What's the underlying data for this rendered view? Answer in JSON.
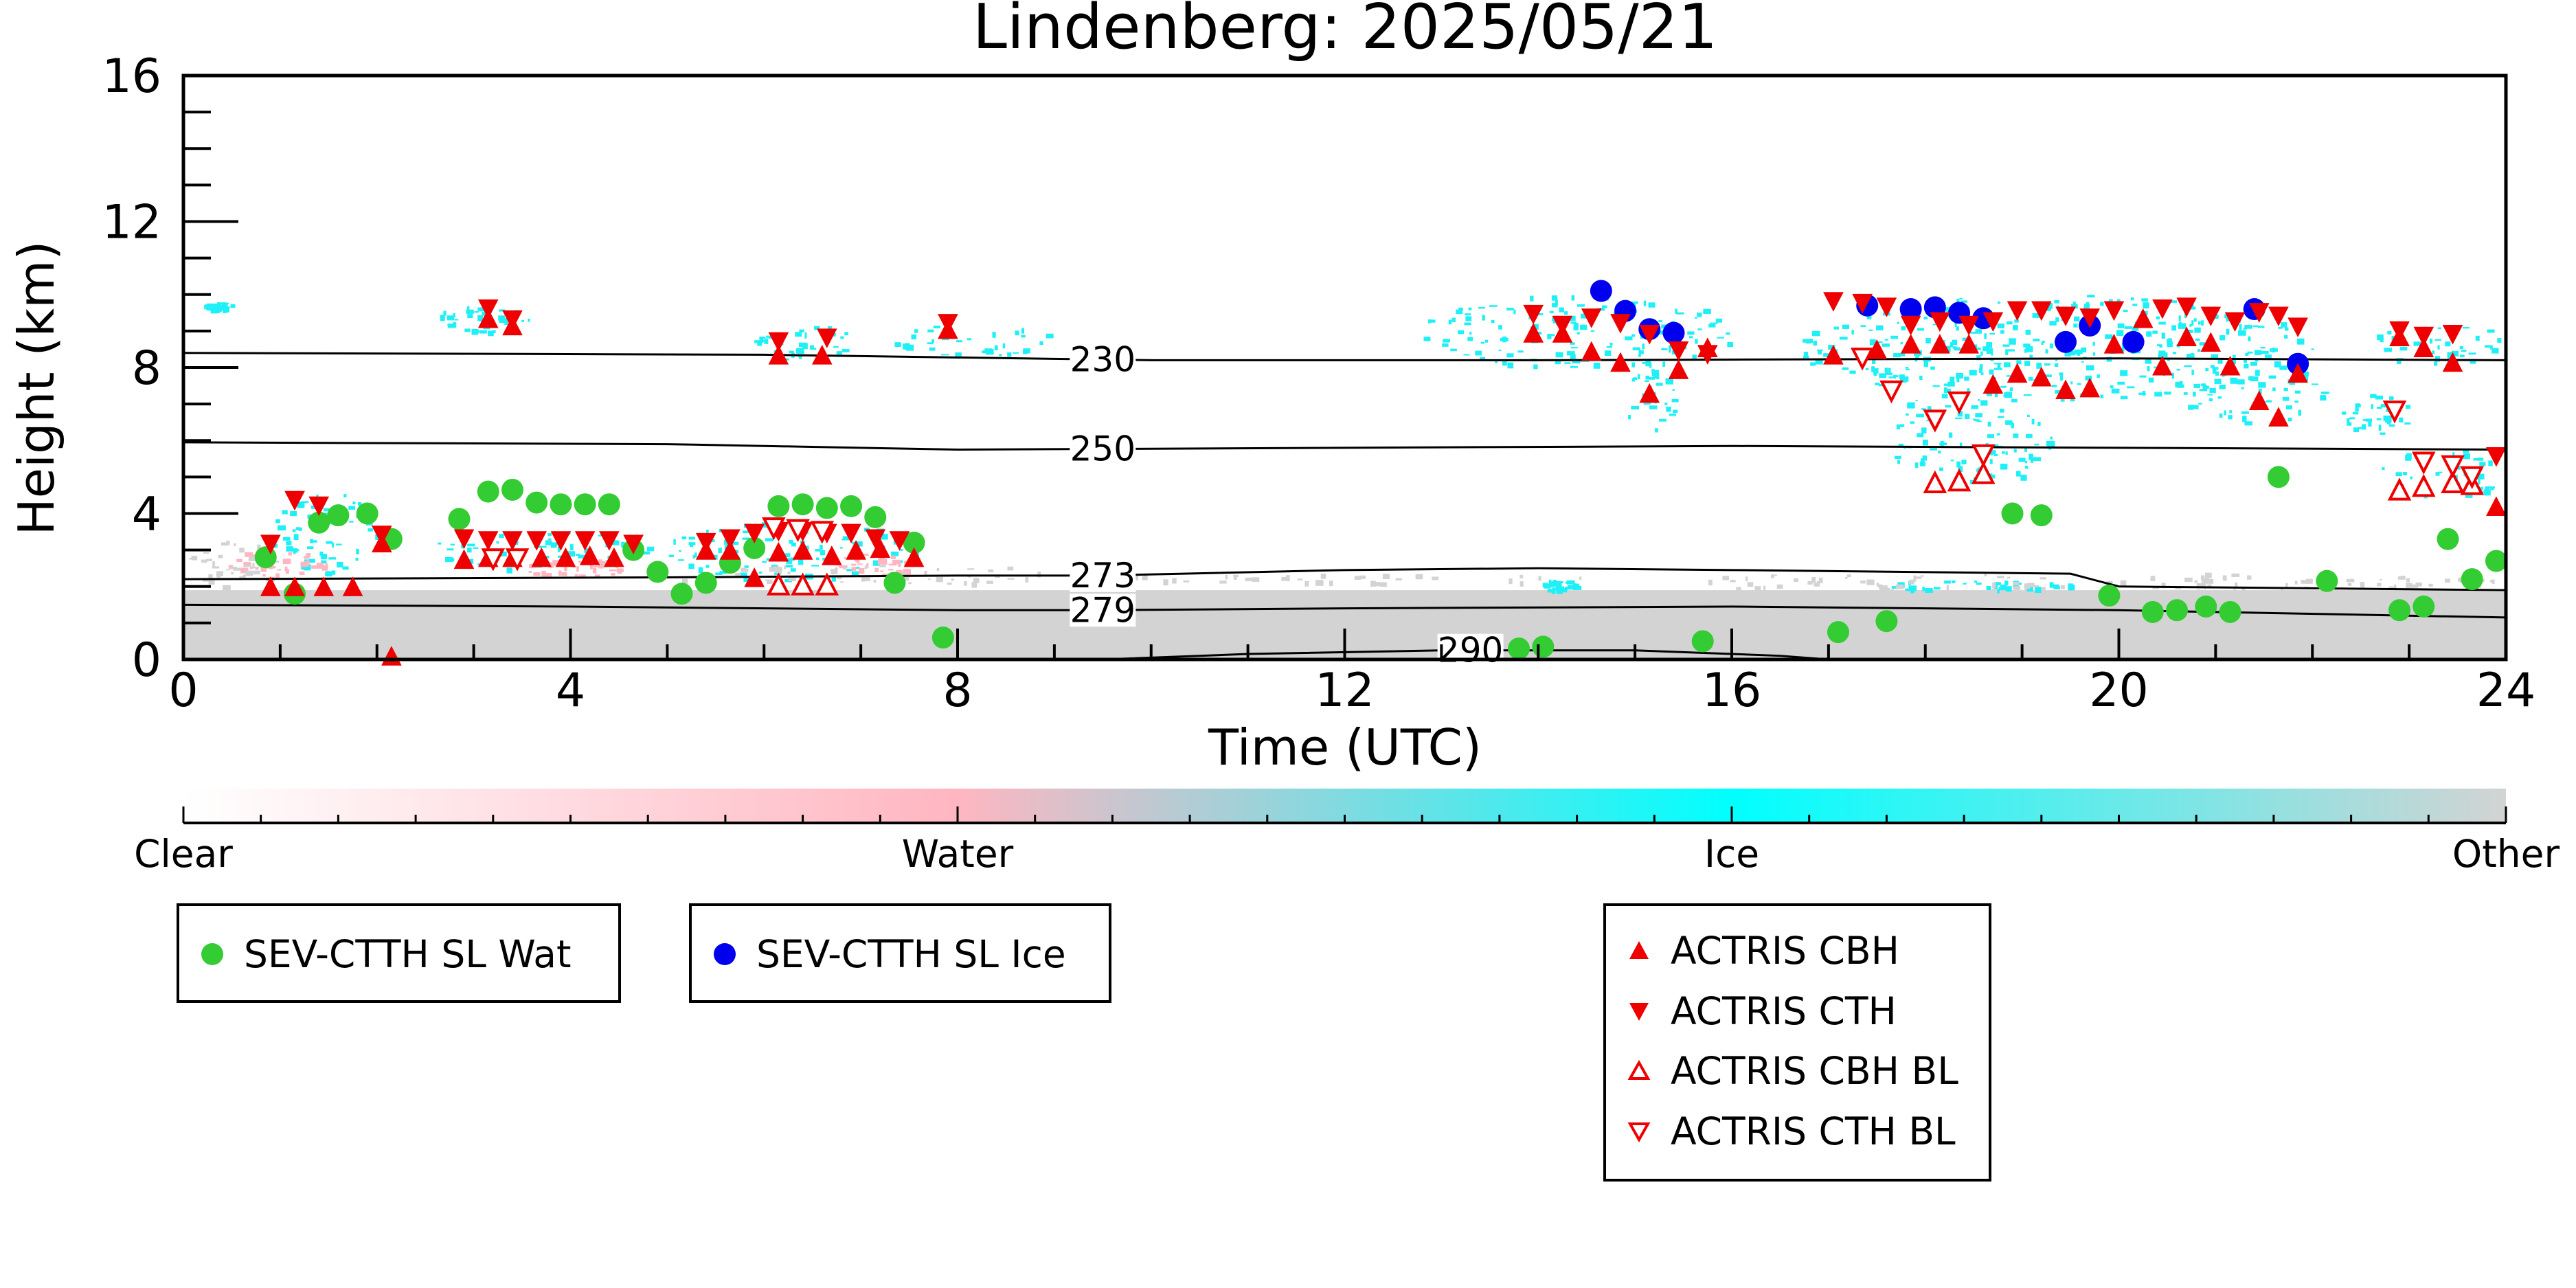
{
  "chart_data": {
    "type": "scatter",
    "title": "Lindenberg: 2025/05/21",
    "xlabel": "Time (UTC)",
    "ylabel": "Height (km)",
    "xlim": [
      0,
      24
    ],
    "ylim": [
      0,
      16
    ],
    "x_ticks": [
      0,
      4,
      8,
      12,
      16,
      20,
      24
    ],
    "y_ticks": [
      0,
      4,
      8,
      12,
      16
    ],
    "colorbar": {
      "labels": [
        "Clear",
        "Water",
        "Ice",
        "Other"
      ],
      "colors": [
        "#ffffff",
        "#ffb6c1",
        "#00ffff",
        "#d3d3d3"
      ]
    },
    "contours": [
      {
        "label": "230",
        "label_x": 9.5,
        "points": [
          [
            0,
            8.4
          ],
          [
            6,
            8.35
          ],
          [
            10,
            8.2
          ],
          [
            14,
            8.2
          ],
          [
            20,
            8.25
          ],
          [
            24,
            8.2
          ]
        ]
      },
      {
        "label": "250",
        "label_x": 9.5,
        "points": [
          [
            0,
            5.95
          ],
          [
            5,
            5.9
          ],
          [
            8,
            5.75
          ],
          [
            12,
            5.8
          ],
          [
            16,
            5.85
          ],
          [
            20,
            5.8
          ],
          [
            24,
            5.75
          ]
        ]
      },
      {
        "label": "273",
        "label_x": 9.5,
        "points": [
          [
            0,
            2.2
          ],
          [
            5,
            2.25
          ],
          [
            8,
            2.3
          ],
          [
            9.5,
            2.3
          ],
          [
            12,
            2.45
          ],
          [
            14,
            2.5
          ],
          [
            16,
            2.45
          ],
          [
            19.5,
            2.35
          ],
          [
            20,
            2.0
          ],
          [
            24,
            1.9
          ]
        ]
      },
      {
        "label": "279",
        "label_x": 9.5,
        "points": [
          [
            0,
            1.5
          ],
          [
            4,
            1.45
          ],
          [
            8,
            1.35
          ],
          [
            9.5,
            1.35
          ],
          [
            12,
            1.4
          ],
          [
            16,
            1.45
          ],
          [
            20,
            1.35
          ],
          [
            24,
            1.15
          ]
        ]
      },
      {
        "label": "290",
        "label_x": 13.3,
        "points": [
          [
            9.5,
            0.0
          ],
          [
            11,
            0.15
          ],
          [
            13,
            0.25
          ],
          [
            15,
            0.25
          ],
          [
            16.5,
            0.1
          ],
          [
            17,
            0.0
          ]
        ]
      }
    ],
    "cloud_regions": [
      {
        "type": "ice",
        "x": [
          0.2,
          0.5
        ],
        "y": [
          9.6,
          9.8
        ]
      },
      {
        "type": "ice",
        "x": [
          2.6,
          3.6
        ],
        "y": [
          9.0,
          9.7
        ]
      },
      {
        "type": "ice",
        "x": [
          5.9,
          6.9
        ],
        "y": [
          8.2,
          9.2
        ]
      },
      {
        "type": "ice",
        "x": [
          7.3,
          9.0
        ],
        "y": [
          8.3,
          9.2
        ]
      },
      {
        "type": "ice",
        "x": [
          12.8,
          16.0
        ],
        "y": [
          8.0,
          10.0
        ]
      },
      {
        "type": "ice",
        "x": [
          14.9,
          15.4
        ],
        "y": [
          6.2,
          8.0
        ]
      },
      {
        "type": "ice",
        "x": [
          16.7,
          22.0
        ],
        "y": [
          7.2,
          10.0
        ]
      },
      {
        "type": "ice",
        "x": [
          17.6,
          19.3
        ],
        "y": [
          4.8,
          7.5
        ]
      },
      {
        "type": "ice",
        "x": [
          20.6,
          22.1
        ],
        "y": [
          6.5,
          8.4
        ]
      },
      {
        "type": "ice",
        "x": [
          22.6,
          24.0
        ],
        "y": [
          8.1,
          9.2
        ]
      },
      {
        "type": "ice",
        "x": [
          22.7,
          24.0
        ],
        "y": [
          4.4,
          5.8
        ]
      },
      {
        "type": "ice",
        "x": [
          22.3,
          23.0
        ],
        "y": [
          6.2,
          7.3
        ]
      },
      {
        "type": "ice",
        "x": [
          0.9,
          2.0
        ],
        "y": [
          2.4,
          4.6
        ]
      },
      {
        "type": "ice",
        "x": [
          2.4,
          4.9
        ],
        "y": [
          2.5,
          3.5
        ]
      },
      {
        "type": "ice",
        "x": [
          5.0,
          7.6
        ],
        "y": [
          2.2,
          3.8
        ]
      },
      {
        "type": "ice",
        "x": [
          17.5,
          19.5
        ],
        "y": [
          1.9,
          2.2
        ]
      },
      {
        "type": "ice",
        "x": [
          14.0,
          14.4
        ],
        "y": [
          1.9,
          2.2
        ]
      },
      {
        "type": "water",
        "x": [
          0.4,
          1.5
        ],
        "y": [
          2.2,
          3.0
        ]
      },
      {
        "type": "water",
        "x": [
          3.5,
          4.6
        ],
        "y": [
          2.3,
          2.8
        ]
      },
      {
        "type": "water",
        "x": [
          6.7,
          7.5
        ],
        "y": [
          2.3,
          2.9
        ]
      },
      {
        "type": "other",
        "x": [
          0.0,
          1.0
        ],
        "y": [
          2.0,
          3.3
        ]
      },
      {
        "type": "other",
        "x": [
          4.8,
          9.5
        ],
        "y": [
          2.1,
          2.6
        ]
      },
      {
        "type": "other",
        "x": [
          9.5,
          14.5
        ],
        "y": [
          2.1,
          2.4
        ]
      },
      {
        "type": "other",
        "x": [
          15.0,
          24.0
        ],
        "y": [
          1.9,
          2.4
        ]
      }
    ],
    "series": [
      {
        "name": "SEV-CTTH SL Wat",
        "marker": "circle",
        "color": "#33cc33",
        "points": [
          [
            0.85,
            2.8
          ],
          [
            1.15,
            1.8
          ],
          [
            1.4,
            3.75
          ],
          [
            1.6,
            3.95
          ],
          [
            1.9,
            4.0
          ],
          [
            2.15,
            3.3
          ],
          [
            2.85,
            3.85
          ],
          [
            3.15,
            4.6
          ],
          [
            3.4,
            4.65
          ],
          [
            3.65,
            4.3
          ],
          [
            3.9,
            4.25
          ],
          [
            4.15,
            4.25
          ],
          [
            4.4,
            4.25
          ],
          [
            4.65,
            3.0
          ],
          [
            4.9,
            2.4
          ],
          [
            5.15,
            1.8
          ],
          [
            5.4,
            2.1
          ],
          [
            5.65,
            2.65
          ],
          [
            5.9,
            3.05
          ],
          [
            6.15,
            4.2
          ],
          [
            6.4,
            4.25
          ],
          [
            6.65,
            4.15
          ],
          [
            6.9,
            4.2
          ],
          [
            7.15,
            3.9
          ],
          [
            7.35,
            2.1
          ],
          [
            7.55,
            3.2
          ],
          [
            7.85,
            0.6
          ],
          [
            13.8,
            0.3
          ],
          [
            14.05,
            0.35
          ],
          [
            15.7,
            0.5
          ],
          [
            17.1,
            0.75
          ],
          [
            17.6,
            1.05
          ],
          [
            18.9,
            4.0
          ],
          [
            19.2,
            3.95
          ],
          [
            19.9,
            1.75
          ],
          [
            20.35,
            1.3
          ],
          [
            20.6,
            1.35
          ],
          [
            20.9,
            1.45
          ],
          [
            21.15,
            1.3
          ],
          [
            21.65,
            5.0
          ],
          [
            22.15,
            2.15
          ],
          [
            22.9,
            1.35
          ],
          [
            23.15,
            1.45
          ],
          [
            23.4,
            3.3
          ],
          [
            23.65,
            2.2
          ],
          [
            23.9,
            2.7
          ]
        ]
      },
      {
        "name": "SEV-CTTH SL Ice",
        "marker": "circle",
        "color": "#0000ee",
        "points": [
          [
            14.65,
            10.1
          ],
          [
            14.9,
            9.55
          ],
          [
            15.15,
            9.05
          ],
          [
            15.4,
            8.95
          ],
          [
            17.4,
            9.7
          ],
          [
            17.85,
            9.6
          ],
          [
            18.1,
            9.65
          ],
          [
            18.35,
            9.5
          ],
          [
            18.6,
            9.35
          ],
          [
            19.45,
            8.7
          ],
          [
            19.7,
            9.15
          ],
          [
            20.15,
            8.7
          ],
          [
            21.4,
            9.6
          ],
          [
            21.85,
            8.1
          ]
        ]
      },
      {
        "name": "ACTRIS CBH",
        "marker": "tri-up",
        "color": "#ee0000",
        "fill": true,
        "points": [
          [
            0.9,
            1.95
          ],
          [
            1.15,
            1.95
          ],
          [
            1.45,
            1.95
          ],
          [
            1.75,
            1.95
          ],
          [
            2.05,
            3.15
          ],
          [
            2.15,
            0.05
          ],
          [
            2.9,
            2.7
          ],
          [
            3.15,
            2.75
          ],
          [
            3.4,
            2.75
          ],
          [
            3.7,
            2.75
          ],
          [
            3.95,
            2.75
          ],
          [
            4.2,
            2.8
          ],
          [
            4.45,
            2.75
          ],
          [
            5.4,
            2.95
          ],
          [
            5.65,
            2.95
          ],
          [
            5.9,
            2.2
          ],
          [
            6.15,
            2.9
          ],
          [
            6.4,
            2.95
          ],
          [
            6.7,
            2.8
          ],
          [
            6.95,
            2.95
          ],
          [
            7.2,
            3.0
          ],
          [
            7.55,
            2.75
          ],
          [
            3.15,
            9.3
          ],
          [
            3.4,
            9.1
          ],
          [
            6.15,
            8.3
          ],
          [
            6.6,
            8.3
          ],
          [
            7.9,
            9.0
          ],
          [
            13.95,
            8.9
          ],
          [
            14.25,
            8.9
          ],
          [
            14.55,
            8.4
          ],
          [
            14.85,
            8.1
          ],
          [
            15.15,
            7.25
          ],
          [
            15.45,
            7.9
          ],
          [
            15.75,
            8.5
          ],
          [
            17.05,
            8.3
          ],
          [
            17.5,
            8.45
          ],
          [
            17.85,
            8.6
          ],
          [
            18.15,
            8.6
          ],
          [
            18.45,
            8.6
          ],
          [
            18.7,
            7.5
          ],
          [
            18.95,
            7.8
          ],
          [
            19.2,
            7.7
          ],
          [
            19.45,
            7.35
          ],
          [
            19.7,
            7.4
          ],
          [
            19.95,
            8.6
          ],
          [
            20.25,
            9.3
          ],
          [
            20.45,
            8.0
          ],
          [
            20.7,
            8.8
          ],
          [
            20.95,
            8.65
          ],
          [
            21.15,
            8.0
          ],
          [
            21.45,
            7.05
          ],
          [
            21.65,
            6.6
          ],
          [
            21.85,
            7.8
          ],
          [
            22.9,
            8.8
          ],
          [
            23.15,
            8.5
          ],
          [
            23.45,
            8.1
          ],
          [
            23.9,
            4.15
          ]
        ]
      },
      {
        "name": "ACTRIS CTH",
        "marker": "tri-down",
        "color": "#ee0000",
        "fill": true,
        "points": [
          [
            0.9,
            3.2
          ],
          [
            1.15,
            4.4
          ],
          [
            1.4,
            4.25
          ],
          [
            2.05,
            3.45
          ],
          [
            2.9,
            3.35
          ],
          [
            3.15,
            3.3
          ],
          [
            3.4,
            3.3
          ],
          [
            3.65,
            3.3
          ],
          [
            3.9,
            3.3
          ],
          [
            4.15,
            3.3
          ],
          [
            4.4,
            3.3
          ],
          [
            4.65,
            3.2
          ],
          [
            5.4,
            3.25
          ],
          [
            5.65,
            3.35
          ],
          [
            5.9,
            3.5
          ],
          [
            6.15,
            3.55
          ],
          [
            6.4,
            3.55
          ],
          [
            6.65,
            3.5
          ],
          [
            6.9,
            3.5
          ],
          [
            7.15,
            3.35
          ],
          [
            7.4,
            3.3
          ],
          [
            3.15,
            9.65
          ],
          [
            3.4,
            9.35
          ],
          [
            6.15,
            8.75
          ],
          [
            6.65,
            8.85
          ],
          [
            7.9,
            9.25
          ],
          [
            13.95,
            9.5
          ],
          [
            14.25,
            9.2
          ],
          [
            14.55,
            9.4
          ],
          [
            14.85,
            9.25
          ],
          [
            15.15,
            8.95
          ],
          [
            15.45,
            8.5
          ],
          [
            15.75,
            8.4
          ],
          [
            17.05,
            9.85
          ],
          [
            17.35,
            9.8
          ],
          [
            17.6,
            9.7
          ],
          [
            17.85,
            9.2
          ],
          [
            18.15,
            9.3
          ],
          [
            18.45,
            9.2
          ],
          [
            18.7,
            9.3
          ],
          [
            18.95,
            9.6
          ],
          [
            19.2,
            9.6
          ],
          [
            19.45,
            9.45
          ],
          [
            19.7,
            9.4
          ],
          [
            19.95,
            9.6
          ],
          [
            20.45,
            9.65
          ],
          [
            20.7,
            9.7
          ],
          [
            20.95,
            9.45
          ],
          [
            21.2,
            9.3
          ],
          [
            21.45,
            9.55
          ],
          [
            21.65,
            9.45
          ],
          [
            21.85,
            9.15
          ],
          [
            22.9,
            9.05
          ],
          [
            23.15,
            8.9
          ],
          [
            23.45,
            8.95
          ],
          [
            23.9,
            5.6
          ]
        ]
      },
      {
        "name": "ACTRIS CBH BL",
        "marker": "tri-up",
        "color": "#ee0000",
        "fill": false,
        "points": [
          [
            6.15,
            2.0
          ],
          [
            6.4,
            2.0
          ],
          [
            6.65,
            2.0
          ],
          [
            18.1,
            4.8
          ],
          [
            18.35,
            4.85
          ],
          [
            18.6,
            5.05
          ],
          [
            22.9,
            4.6
          ],
          [
            23.15,
            4.7
          ],
          [
            23.45,
            4.8
          ],
          [
            23.65,
            4.75
          ]
        ]
      },
      {
        "name": "ACTRIS CTH BL",
        "marker": "tri-down",
        "color": "#ee0000",
        "fill": false,
        "points": [
          [
            3.2,
            2.8
          ],
          [
            3.45,
            2.8
          ],
          [
            6.1,
            3.65
          ],
          [
            6.35,
            3.6
          ],
          [
            6.6,
            3.55
          ],
          [
            17.35,
            8.3
          ],
          [
            17.65,
            7.4
          ],
          [
            18.1,
            6.6
          ],
          [
            18.35,
            7.1
          ],
          [
            18.6,
            5.65
          ],
          [
            22.85,
            6.85
          ],
          [
            23.15,
            5.45
          ],
          [
            23.45,
            5.35
          ],
          [
            23.65,
            5.05
          ]
        ]
      }
    ]
  }
}
